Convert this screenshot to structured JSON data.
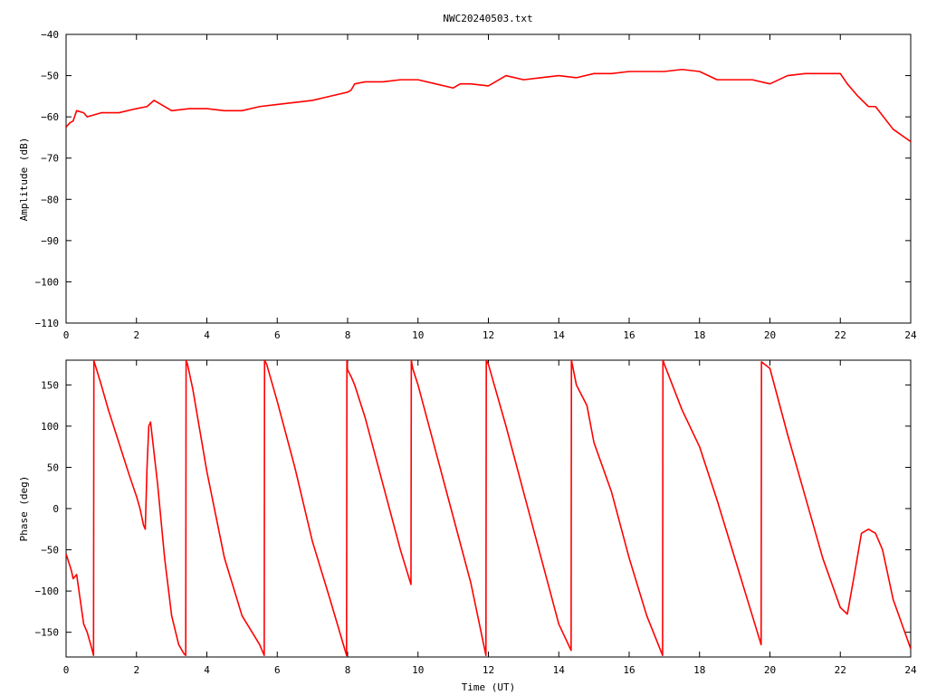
{
  "chart_data": [
    {
      "type": "line",
      "title": "NWC20240503.txt",
      "xlabel": "",
      "ylabel": "Amplitude (dB)",
      "xlim": [
        0,
        24
      ],
      "ylim": [
        -110,
        -40
      ],
      "xticks": [
        0,
        2,
        4,
        6,
        8,
        10,
        12,
        14,
        16,
        18,
        20,
        22,
        24
      ],
      "yticks": [
        -110,
        -100,
        -90,
        -80,
        -70,
        -60,
        -50,
        -40
      ],
      "xtick_labels": [
        "0",
        "2",
        "4",
        "6",
        "8",
        "10",
        "12",
        "14",
        "16",
        "18",
        "20",
        "22",
        "24"
      ],
      "ytick_labels": [
        "−110",
        "−100",
        "−90",
        "−80",
        "−70",
        "−60",
        "−50",
        "−40"
      ],
      "grid": false,
      "color": "#ff0000",
      "series": [
        {
          "x": [
            0,
            0.1,
            0.2,
            0.3,
            0.5,
            0.6,
            0.8,
            1.0,
            1.5,
            2.0,
            2.3,
            2.5,
            2.7,
            3.0,
            3.5,
            4.0,
            4.5,
            5.0,
            5.5,
            6.0,
            6.5,
            7.0,
            7.5,
            8.0,
            8.1,
            8.2,
            8.5,
            9.0,
            9.5,
            10.0,
            10.5,
            11.0,
            11.2,
            11.5,
            12.0,
            12.5,
            13.0,
            13.5,
            14.0,
            14.5,
            15.0,
            15.5,
            16.0,
            16.5,
            17.0,
            17.5,
            18.0,
            18.5,
            19.0,
            19.5,
            20.0,
            20.5,
            21.0,
            21.5,
            22.0,
            22.2,
            22.5,
            22.8,
            23.0,
            23.5,
            24.0
          ],
          "y": [
            -62.5,
            -61.5,
            -61,
            -58.5,
            -59,
            -60,
            -59.5,
            -59,
            -59,
            -58,
            -57.5,
            -56,
            -57,
            -58.5,
            -58,
            -58,
            -58.5,
            -58.5,
            -57.5,
            -57,
            -56.5,
            -56,
            -55,
            -54,
            -53.5,
            -52,
            -51.5,
            -51.5,
            -51,
            -51,
            -52,
            -53,
            -52,
            -52,
            -52.5,
            -50,
            -51,
            -50.5,
            -50,
            -50.5,
            -49.5,
            -49.5,
            -49,
            -49,
            -49,
            -48.5,
            -49,
            -51,
            -51,
            -51,
            -52,
            -50,
            -49.5,
            -49.5,
            -49.5,
            -52,
            -55,
            -57.5,
            -57.5,
            -63,
            -66
          ]
        }
      ]
    },
    {
      "type": "line",
      "title": "",
      "xlabel": "Time (UT)",
      "ylabel": "Phase (deg)",
      "xlim": [
        0,
        24
      ],
      "ylim": [
        -180,
        180
      ],
      "xticks": [
        0,
        2,
        4,
        6,
        8,
        10,
        12,
        14,
        16,
        18,
        20,
        22,
        24
      ],
      "yticks": [
        -150,
        -100,
        -50,
        0,
        50,
        100,
        150
      ],
      "xtick_labels": [
        "0",
        "2",
        "4",
        "6",
        "8",
        "10",
        "12",
        "14",
        "16",
        "18",
        "20",
        "22",
        "24"
      ],
      "ytick_labels": [
        "−150",
        "−100",
        "−50",
        "0",
        "50",
        "100",
        "150"
      ],
      "grid": false,
      "color": "#ff0000",
      "series": [
        {
          "x": [
            0,
            0.15,
            0.2,
            0.3,
            0.4,
            0.5,
            0.6,
            0.7,
            0.78,
            0.79,
            0.8,
            1.0,
            1.2,
            1.5,
            1.8,
            2.0,
            2.1,
            2.2,
            2.25,
            2.3,
            2.35,
            2.4,
            2.6,
            2.8,
            3.0,
            3.2,
            3.35,
            3.4,
            3.41,
            3.45,
            3.6,
            3.8,
            4.0,
            4.5,
            5.0,
            5.5,
            5.63,
            5.64,
            5.7,
            6.0,
            6.5,
            7.0,
            7.5,
            7.97,
            7.98,
            8.0,
            8.1,
            8.2,
            8.5,
            9.0,
            9.5,
            9.8,
            9.81,
            9.85,
            10.0,
            10.5,
            11.0,
            11.5,
            11.93,
            11.94,
            12.0,
            12.5,
            13.0,
            13.5,
            14.0,
            14.35,
            14.36,
            14.5,
            14.8,
            15.0,
            15.5,
            16.0,
            16.5,
            16.95,
            16.96,
            17.0,
            17.5,
            18.0,
            18.5,
            19.0,
            19.5,
            19.75,
            19.76,
            20.0,
            20.5,
            21.0,
            21.5,
            22.0,
            22.2,
            22.4,
            22.6,
            22.8,
            23.0,
            23.2,
            23.5,
            24.0
          ],
          "y": [
            -55,
            -75,
            -85,
            -80,
            -110,
            -140,
            -150,
            -165,
            -178,
            180,
            178,
            150,
            120,
            80,
            40,
            15,
            0,
            -20,
            -25,
            50,
            100,
            105,
            30,
            -60,
            -130,
            -165,
            -176,
            -178,
            180,
            175,
            145,
            95,
            45,
            -60,
            -130,
            -165,
            -178,
            180,
            175,
            130,
            50,
            -40,
            -110,
            -178,
            180,
            168,
            160,
            150,
            110,
            30,
            -50,
            -92,
            180,
            170,
            150,
            70,
            -10,
            -90,
            -178,
            180,
            175,
            100,
            20,
            -60,
            -140,
            -172,
            180,
            150,
            125,
            80,
            20,
            -60,
            -130,
            -178,
            180,
            175,
            120,
            75,
            10,
            -60,
            -130,
            -165,
            178,
            170,
            90,
            15,
            -60,
            -120,
            -128,
            -80,
            -30,
            -25,
            -30,
            -50,
            -110,
            -170
          ]
        }
      ]
    }
  ]
}
